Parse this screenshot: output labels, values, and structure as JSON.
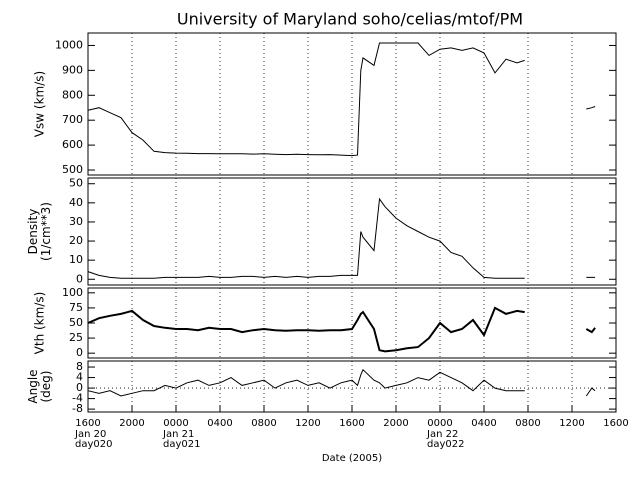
{
  "chart_data": [
    {
      "type": "line",
      "title": "University of Maryland  soho/celias/mtof/PM",
      "ylabel": [
        "Vsw (km/s)"
      ],
      "xlim": [
        0,
        48
      ],
      "ylim": [
        480,
        1050
      ],
      "yticks": [
        500,
        600,
        700,
        800,
        900,
        1000
      ],
      "grid": true,
      "line_width": 1,
      "x": [
        0,
        1,
        2,
        3,
        4,
        5,
        6,
        7,
        8,
        9,
        10,
        11,
        12,
        13,
        14,
        15,
        16,
        17,
        18,
        19,
        20,
        21,
        22,
        23,
        24,
        24.5,
        24.8,
        25,
        26,
        26.5,
        27,
        28,
        29,
        30,
        31,
        32,
        33,
        34,
        35,
        36,
        37,
        38,
        39,
        39.7,
        42,
        45.3,
        45.8,
        46.1
      ],
      "series": [
        {
          "name": "Vsw",
          "color": "#000000",
          "values": [
            740,
            750,
            730,
            710,
            650,
            620,
            575,
            570,
            568,
            567,
            566,
            566,
            565,
            565,
            565,
            564,
            565,
            563,
            562,
            563,
            562,
            561,
            562,
            560,
            558,
            560,
            900,
            950,
            920,
            1010,
            1010,
            1010,
            1010,
            1010,
            960,
            985,
            990,
            980,
            990,
            970,
            890,
            945,
            930,
            940,
            null,
            745,
            750,
            755
          ]
        }
      ]
    },
    {
      "type": "line",
      "ylabel": [
        "Density",
        "(1/cm**3)"
      ],
      "xlim": [
        0,
        48
      ],
      "ylim": [
        -3,
        53
      ],
      "yticks": [
        0,
        10,
        20,
        30,
        40,
        50
      ],
      "grid": true,
      "line_width": 1,
      "x": [
        0,
        1,
        2,
        3,
        4,
        5,
        6,
        7,
        8,
        9,
        10,
        11,
        12,
        13,
        14,
        15,
        16,
        17,
        18,
        19,
        20,
        21,
        22,
        23,
        24,
        24.5,
        24.8,
        25,
        26,
        26.5,
        27,
        28,
        29,
        30,
        31,
        32,
        33,
        34,
        35,
        36,
        37,
        38,
        39,
        39.7,
        42,
        45.3,
        45.8,
        46.1
      ],
      "series": [
        {
          "name": "Density",
          "color": "#000000",
          "values": [
            4,
            2,
            1,
            0.5,
            0.5,
            0.5,
            0.5,
            1,
            1,
            1,
            1,
            1.5,
            1,
            1,
            1.5,
            1.5,
            1,
            1.5,
            1,
            1.5,
            1,
            1.5,
            1.5,
            2,
            2,
            2,
            25,
            22,
            15,
            42,
            38,
            32,
            28,
            25,
            22,
            20,
            14,
            12,
            6,
            1,
            0.5,
            0.5,
            0.5,
            0.5,
            null,
            1,
            1,
            1
          ]
        }
      ]
    },
    {
      "type": "line",
      "ylabel": [
        "Vth (km/s)"
      ],
      "xlim": [
        0,
        48
      ],
      "ylim": [
        -8,
        108
      ],
      "yticks": [
        0,
        25,
        50,
        75,
        100
      ],
      "grid": true,
      "line_width": 2,
      "x": [
        0,
        1,
        2,
        3,
        4,
        5,
        6,
        7,
        8,
        9,
        10,
        11,
        12,
        13,
        14,
        15,
        16,
        17,
        18,
        19,
        20,
        21,
        22,
        23,
        24,
        24.5,
        24.8,
        25,
        26,
        26.5,
        27,
        28,
        29,
        30,
        31,
        32,
        33,
        34,
        35,
        36,
        37,
        38,
        39,
        39.7,
        42,
        45.3,
        45.8,
        46.1
      ],
      "series": [
        {
          "name": "Vth",
          "color": "#000000",
          "values": [
            50,
            58,
            62,
            65,
            70,
            55,
            45,
            42,
            40,
            40,
            38,
            42,
            40,
            40,
            35,
            38,
            40,
            38,
            37,
            38,
            38,
            37,
            38,
            38,
            40,
            55,
            65,
            68,
            40,
            5,
            3,
            5,
            8,
            10,
            25,
            50,
            35,
            40,
            55,
            30,
            75,
            65,
            70,
            68,
            null,
            40,
            35,
            42
          ]
        }
      ]
    },
    {
      "type": "line",
      "ylabel": [
        "Angle",
        "(deg)"
      ],
      "xlabel": "Date (2005)",
      "xlim": [
        0,
        48
      ],
      "ylim": [
        -9.1,
        10.3
      ],
      "yticks": [
        8,
        4,
        0,
        -4,
        -8
      ],
      "grid": true,
      "zero_line": true,
      "line_width": 1,
      "xticks": [
        {
          "value": 0,
          "label": "1600"
        },
        {
          "value": 4,
          "label": "2000"
        },
        {
          "value": 8,
          "label": "0000"
        },
        {
          "value": 12,
          "label": "0400"
        },
        {
          "value": 16,
          "label": "0800"
        },
        {
          "value": 20,
          "label": "1200"
        },
        {
          "value": 24,
          "label": "1600"
        },
        {
          "value": 28,
          "label": "2000"
        },
        {
          "value": 32,
          "label": "0000"
        },
        {
          "value": 36,
          "label": "0400"
        },
        {
          "value": 40,
          "label": "0800"
        },
        {
          "value": 44,
          "label": "1200"
        },
        {
          "value": 48,
          "label": "1600"
        }
      ],
      "xtick_dates": [
        {
          "value": 0,
          "label": "Jan 20",
          "day": "day020"
        },
        {
          "value": 8,
          "label": "Jan 21",
          "day": "day021"
        },
        {
          "value": 32,
          "label": "Jan 22",
          "day": "day022"
        }
      ],
      "x": [
        0,
        1,
        2,
        3,
        4,
        5,
        6,
        7,
        8,
        9,
        10,
        11,
        12,
        13,
        14,
        15,
        16,
        17,
        18,
        19,
        20,
        21,
        22,
        23,
        24,
        24.5,
        24.8,
        25,
        26,
        26.5,
        27,
        28,
        29,
        30,
        31,
        32,
        33,
        34,
        35,
        36,
        37,
        38,
        39,
        39.7,
        42,
        45.3,
        45.8,
        46.1
      ],
      "series": [
        {
          "name": "Angle",
          "color": "#000000",
          "values": [
            -1,
            -2,
            -1,
            -3,
            -2,
            -1,
            -1,
            1,
            0,
            2,
            3,
            1,
            2,
            4,
            1,
            2,
            3,
            0,
            2,
            3,
            1,
            2,
            0,
            2,
            3,
            1,
            5,
            7,
            3,
            2,
            0,
            1,
            2,
            4,
            3,
            6,
            4,
            2,
            -1,
            3,
            0,
            -1,
            -1,
            -1,
            null,
            -3,
            0,
            -1
          ]
        }
      ]
    }
  ]
}
